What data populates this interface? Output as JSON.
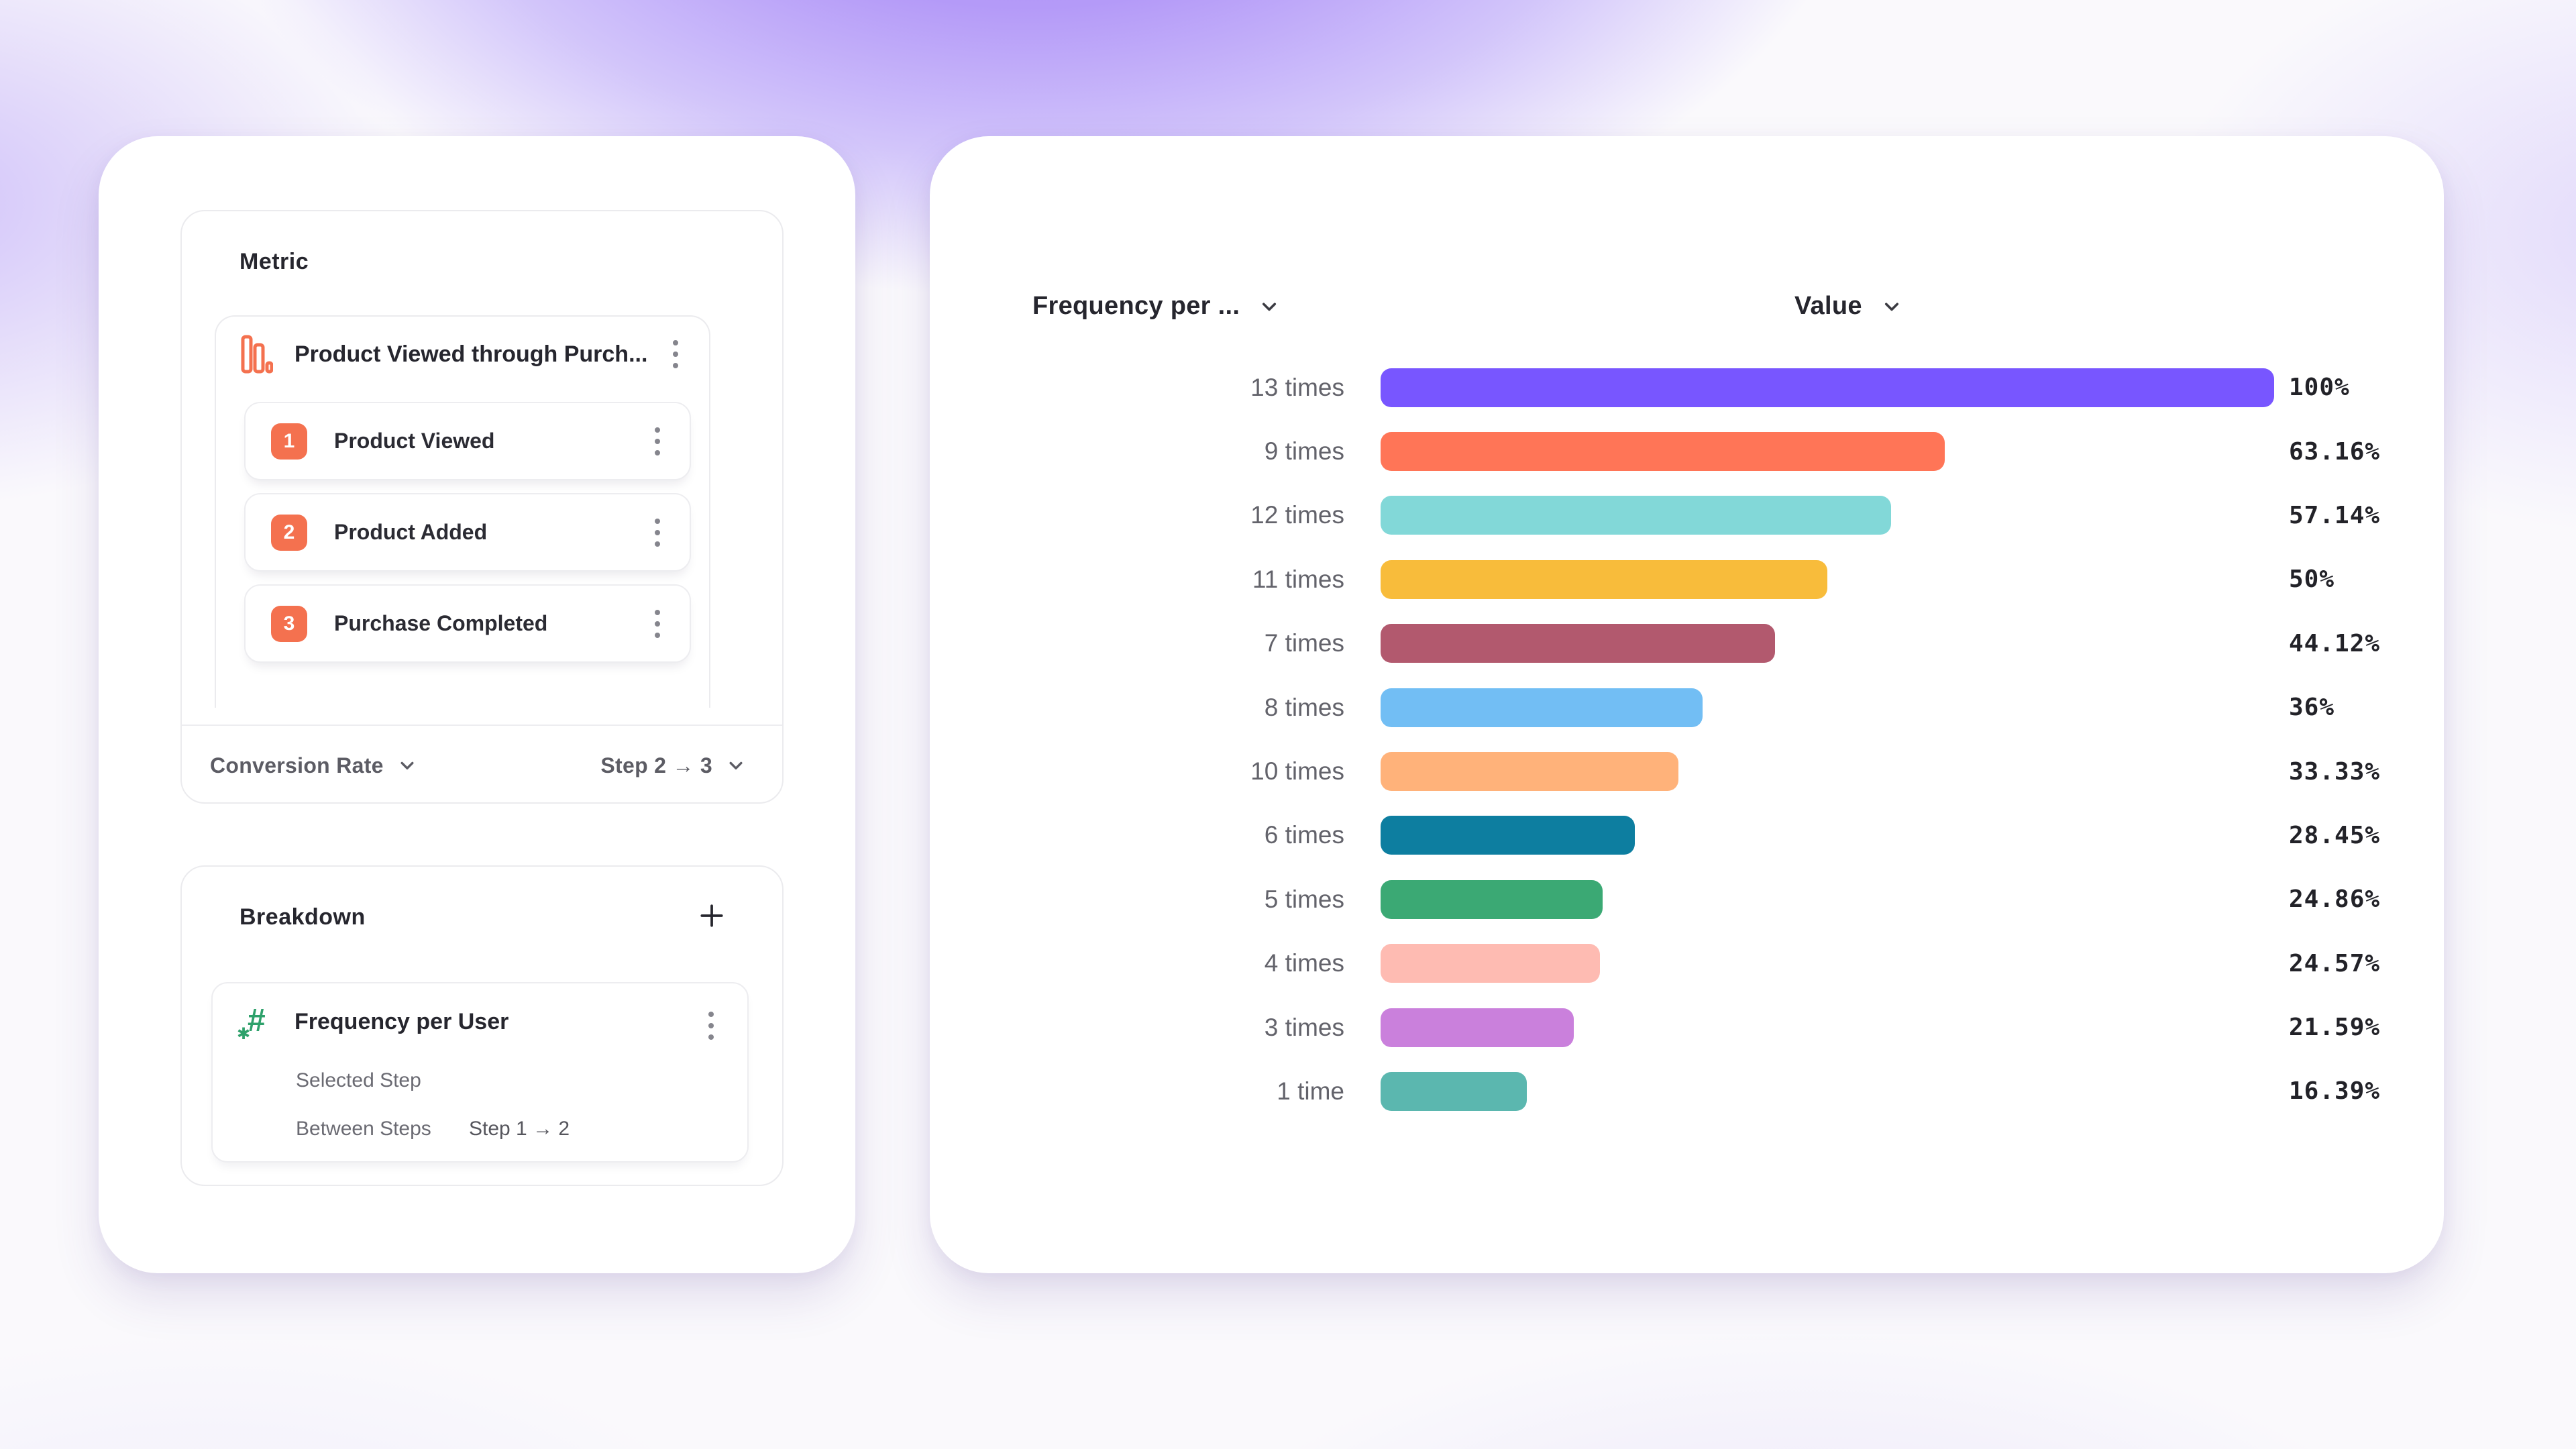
{
  "left_panel": {
    "metric_section": {
      "title": "Metric",
      "funnel": {
        "icon": "funnel-bars-icon",
        "title": "Product Viewed through Purch...",
        "steps": [
          {
            "number": "1",
            "label": "Product Viewed"
          },
          {
            "number": "2",
            "label": "Product Added"
          },
          {
            "number": "3",
            "label": "Purchase Completed"
          }
        ]
      },
      "footer": {
        "measurement_label": "Conversion Rate",
        "step_range_label": "Step 2 → 3"
      }
    },
    "breakdown_section": {
      "title": "Breakdown",
      "add_button": "plus-icon",
      "item": {
        "icon": "hash-icon",
        "hash_glyph": "#",
        "star_glyph": "✱",
        "title": "Frequency per User",
        "row1_label": "Selected Step",
        "row2_label": "Between Steps",
        "row2_value": "Step 1 → 2"
      }
    }
  },
  "chart_panel": {
    "x_column_header": "Frequency per ...",
    "value_column_header": "Value"
  },
  "chart_data": {
    "type": "bar",
    "orientation": "horizontal",
    "title": "",
    "xlabel": "Value",
    "ylabel": "Frequency per User",
    "xlim": [
      0,
      100
    ],
    "grid": false,
    "legend": false,
    "categories": [
      "13 times",
      "9 times",
      "12 times",
      "11 times",
      "7 times",
      "8 times",
      "10 times",
      "6 times",
      "5 times",
      "4 times",
      "3 times",
      "1 time"
    ],
    "values": [
      100,
      63.16,
      57.14,
      50,
      44.12,
      36,
      33.33,
      28.45,
      24.86,
      24.57,
      21.59,
      16.39
    ],
    "value_labels": [
      "100%",
      "63.16%",
      "57.14%",
      "50%",
      "44.12%",
      "36%",
      "33.33%",
      "28.45%",
      "24.86%",
      "24.57%",
      "21.59%",
      "16.39%"
    ],
    "bar_colors": [
      "#7856FF",
      "#FF7557",
      "#82D8D8",
      "#F8BC3B",
      "#B2596E",
      "#72BEF4",
      "#FFB27A",
      "#0D7EA0",
      "#3BA974",
      "#FEBBB2",
      "#CA80DC",
      "#5BB7AF"
    ]
  },
  "colors": {
    "accent_coral": "#F4714F",
    "accent_green": "#2EA16B",
    "card_background": "#ffffff",
    "panel_border": "#ebebee",
    "text_dark": "#26262e",
    "text_gray": "#63636b",
    "background_purple": "#a486f6"
  }
}
